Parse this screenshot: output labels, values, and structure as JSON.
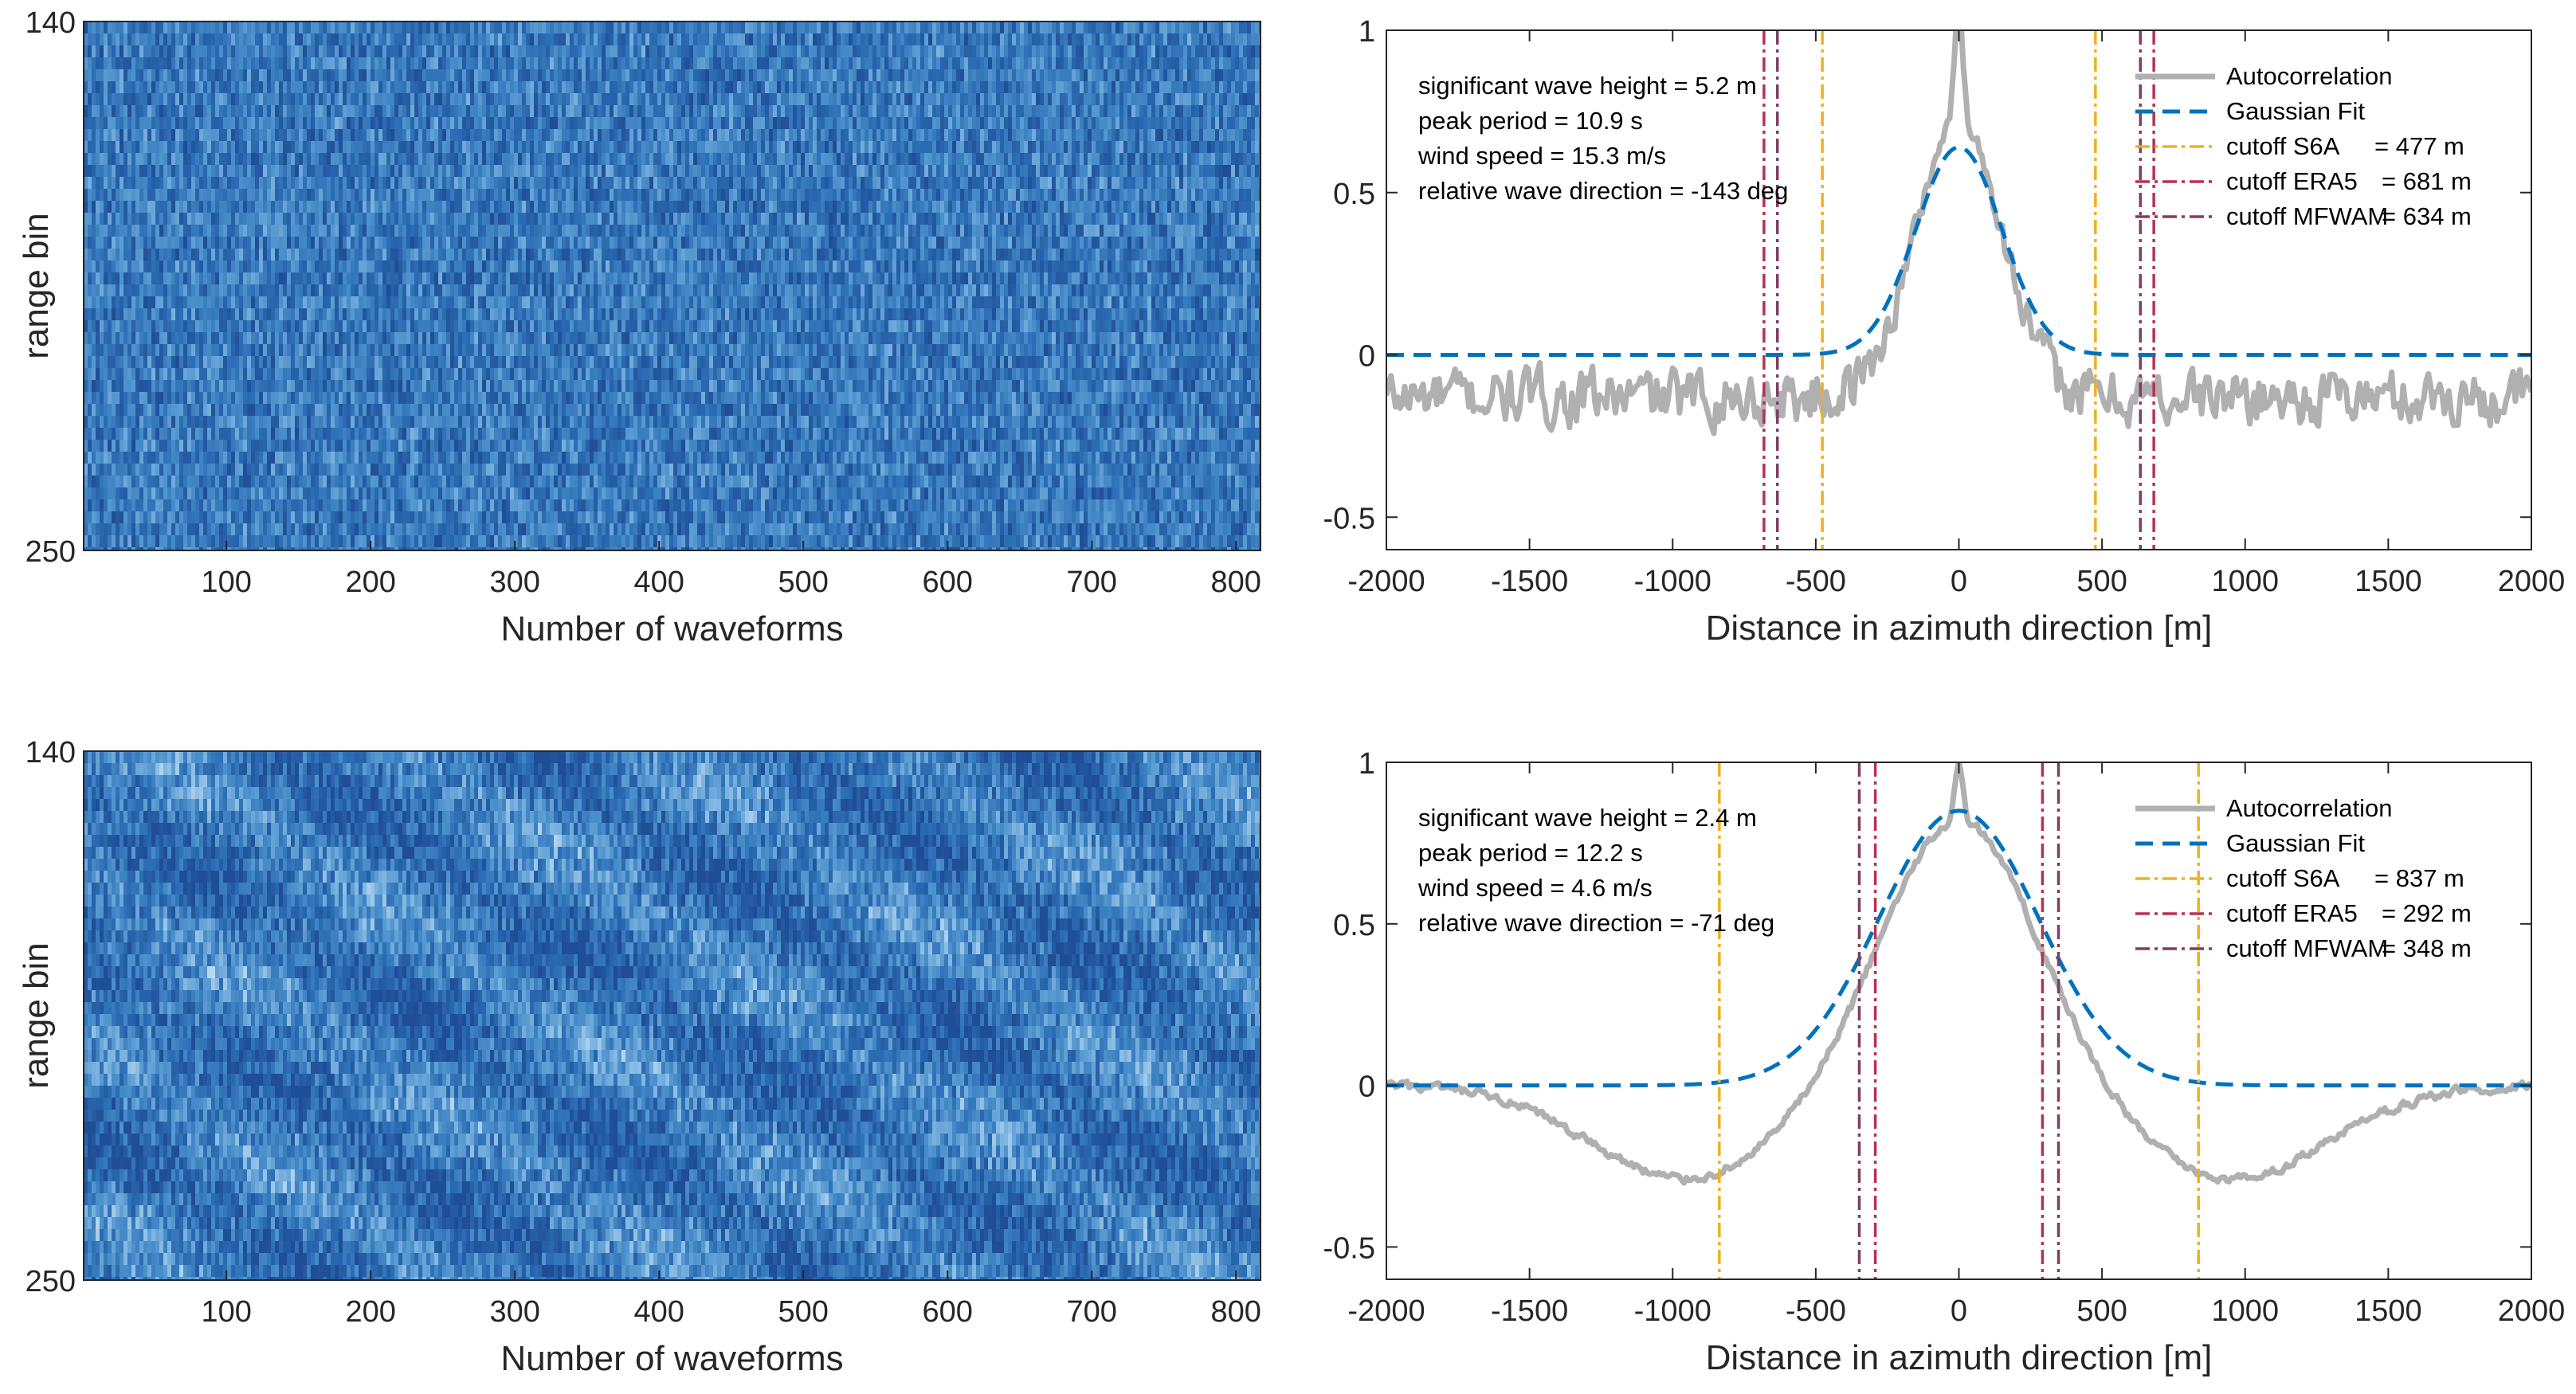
{
  "chart_data": [
    {
      "id": "hm1",
      "type": "heatmap",
      "title": "",
      "xlabel": "Number of waveforms",
      "ylabel": "range bin",
      "xlim": [
        1,
        817
      ],
      "ylim": [
        140,
        250
      ],
      "xticks": [
        "100",
        "200",
        "300",
        "400",
        "500",
        "600",
        "700",
        "800"
      ],
      "yticks": [
        "140",
        "250"
      ],
      "colormap": [
        "#1f4e96",
        "#2b6cb3",
        "#4a8fcb",
        "#7fb5e0",
        "#c9e2f6"
      ],
      "texture": "fine speckle, no visible swell pattern"
    },
    {
      "id": "ac1",
      "type": "line",
      "title": "",
      "xlabel": "Distance in azimuth direction [m]",
      "ylabel": "",
      "xlim": [
        -2000,
        2000
      ],
      "ylim": [
        -0.6,
        1
      ],
      "xticks": [
        "-2000",
        "-1500",
        "-1000",
        "-500",
        "0",
        "500",
        "1000",
        "1500",
        "2000"
      ],
      "yticks": [
        "-0.5",
        "0",
        "0.5",
        "1"
      ],
      "annotations": [
        "significant wave height = 5.2 m",
        "peak period = 10.9 s",
        "wind speed = 15.3 m/s",
        "relative wave direction = -143 deg"
      ],
      "series": [
        {
          "name": "Autocorrelation",
          "color": "#b0b0b0",
          "style": "solid",
          "model": {
            "peak": 0.6,
            "sigma": 150,
            "baseline": -0.13,
            "noise": 0.055,
            "spike": 0.35
          }
        },
        {
          "name": "Gaussian Fit",
          "color": "#0072bd",
          "style": "dashed",
          "model": {
            "amp": 0.64,
            "sigma": 150
          }
        }
      ],
      "cutoffs": [
        {
          "label": "cutoff S6A",
          "value_text": "= 477 m",
          "value": 477,
          "color": "#edb120"
        },
        {
          "label": "cutoff ERA5",
          "value_text": "= 681 m",
          "value": 681,
          "color": "#b8324f"
        },
        {
          "label": "cutoff MFWAM",
          "value_text": "= 634 m",
          "value": 634,
          "color": "#7e3f63"
        }
      ]
    },
    {
      "id": "hm2",
      "type": "heatmap",
      "title": "",
      "xlabel": "Number of waveforms",
      "ylabel": "range bin",
      "xlim": [
        1,
        817
      ],
      "ylim": [
        140,
        250
      ],
      "xticks": [
        "100",
        "200",
        "300",
        "400",
        "500",
        "600",
        "700",
        "800"
      ],
      "yticks": [
        "140",
        "250"
      ],
      "colormap": [
        "#1f4e96",
        "#2b6cb3",
        "#4a8fcb",
        "#7fb5e0",
        "#c9e2f6"
      ],
      "texture": "speckle with visible diagonal swell bands"
    },
    {
      "id": "ac2",
      "type": "line",
      "title": "",
      "xlabel": "Distance in azimuth direction [m]",
      "ylabel": "",
      "xlim": [
        -2000,
        2000
      ],
      "ylim": [
        -0.6,
        1
      ],
      "xticks": [
        "-2000",
        "-1500",
        "-1000",
        "-500",
        "0",
        "500",
        "1000",
        "1500",
        "2000"
      ],
      "yticks": [
        "-0.5",
        "0",
        "0.5",
        "1"
      ],
      "annotations": [
        "significant wave height = 2.4 m",
        "peak period = 12.2 s",
        "wind speed = 4.6 m/s",
        "relative wave direction = -71 deg"
      ],
      "series": [
        {
          "name": "Autocorrelation",
          "color": "#b0b0b0",
          "style": "solid",
          "model": {
            "peak": 0.83,
            "sigma": 270,
            "dip_depth": 0.29,
            "dip_center": 950,
            "dip_width": 340,
            "noise": 0.012,
            "spike": 0.17
          }
        },
        {
          "name": "Gaussian Fit",
          "color": "#0072bd",
          "style": "dashed",
          "model": {
            "amp": 0.85,
            "sigma": 280
          }
        }
      ],
      "cutoffs": [
        {
          "label": "cutoff S6A",
          "value_text": "= 837 m",
          "value": 837,
          "color": "#edb120"
        },
        {
          "label": "cutoff ERA5",
          "value_text": "= 292 m",
          "value": 292,
          "color": "#b8324f"
        },
        {
          "label": "cutoff MFWAM",
          "value_text": "= 348 m",
          "value": 348,
          "color": "#7e3f63"
        }
      ]
    }
  ]
}
